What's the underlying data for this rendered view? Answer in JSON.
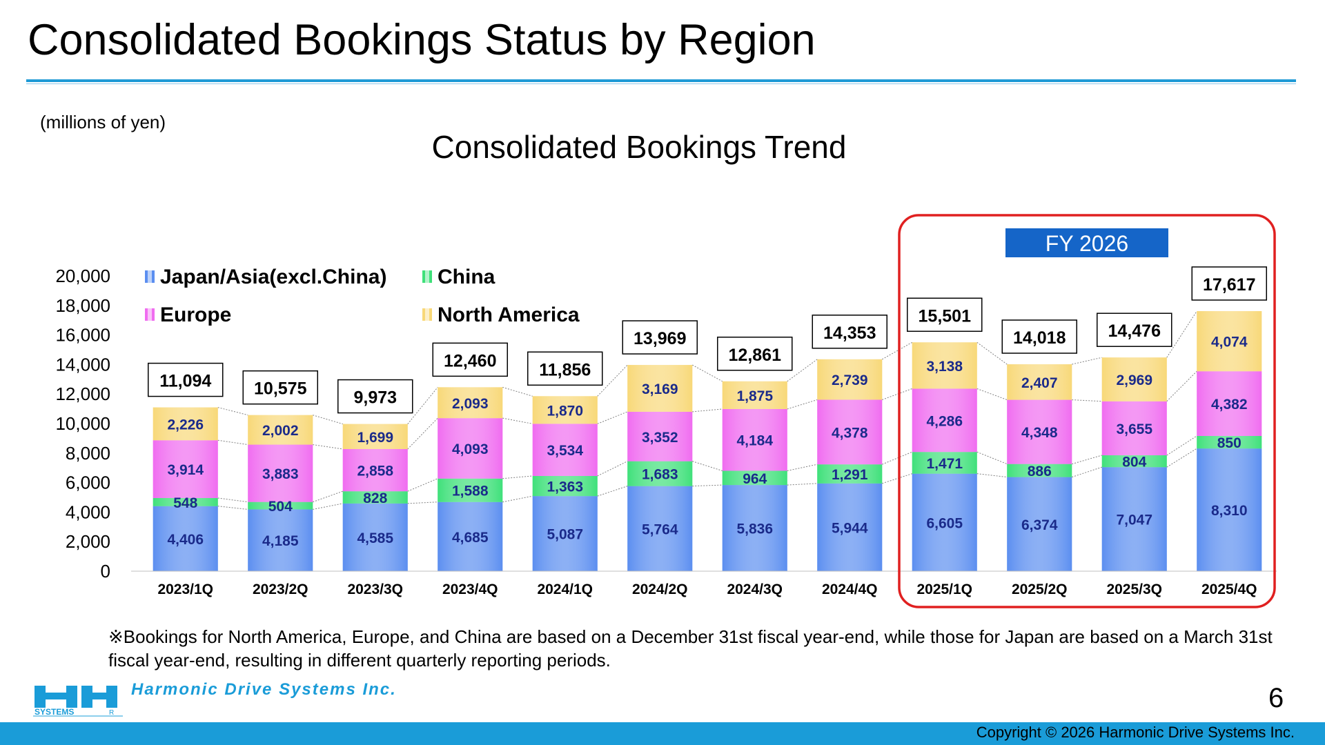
{
  "slide": {
    "title": "Consolidated Bookings Status by Region",
    "units": "(millions of yen)",
    "footnote": "※Bookings for North America, Europe, and China are based on a December 31st fiscal year-end, while those for Japan are based on a March 31st fiscal year-end, resulting in different quarterly reporting periods.",
    "page_number": "6",
    "copyright": "Copyright © 2026 Harmonic Drive Systems Inc.",
    "company_name": "Harmonic Drive Systems Inc.",
    "logo_text": "SYSTEMS",
    "logo_registered": "R"
  },
  "chart_data": {
    "type": "bar",
    "stacked": true,
    "title": "Consolidated Bookings Trend",
    "categories": [
      "2023/1Q",
      "2023/2Q",
      "2023/3Q",
      "2023/4Q",
      "2024/1Q",
      "2024/2Q",
      "2024/3Q",
      "2024/4Q",
      "2025/1Q",
      "2025/2Q",
      "2025/3Q",
      "2025/4Q"
    ],
    "series": [
      {
        "name": "Japan/Asia(excl.China)",
        "color": "#5b8ef0",
        "values": [
          4406,
          4185,
          4585,
          4685,
          5087,
          5764,
          5836,
          5944,
          6605,
          6374,
          7047,
          8310
        ]
      },
      {
        "name": "China",
        "color": "#3fe07a",
        "values": [
          548,
          504,
          828,
          1588,
          1363,
          1683,
          964,
          1291,
          1471,
          886,
          804,
          850
        ]
      },
      {
        "name": "Europe",
        "color": "#f06cf0",
        "values": [
          3914,
          3883,
          2858,
          4093,
          3534,
          3352,
          4184,
          4378,
          4286,
          4348,
          3655,
          4382
        ]
      },
      {
        "name": "North America",
        "color": "#f8d878",
        "values": [
          2226,
          2002,
          1699,
          2093,
          1870,
          3169,
          1875,
          2739,
          3138,
          2407,
          2969,
          4074
        ]
      }
    ],
    "totals": [
      11094,
      10575,
      9973,
      12460,
      11856,
      13969,
      12861,
      14353,
      15501,
      14018,
      14476,
      17617
    ],
    "ylim": [
      0,
      20000
    ],
    "yticks": [
      0,
      2000,
      4000,
      6000,
      8000,
      10000,
      12000,
      14000,
      16000,
      18000,
      20000
    ],
    "legend": "top-left",
    "highlight": {
      "label": "FY 2026",
      "from_category": "2025/1Q",
      "to_category": "2025/4Q",
      "color": "#e02020",
      "label_bg": "#1565c8"
    }
  }
}
